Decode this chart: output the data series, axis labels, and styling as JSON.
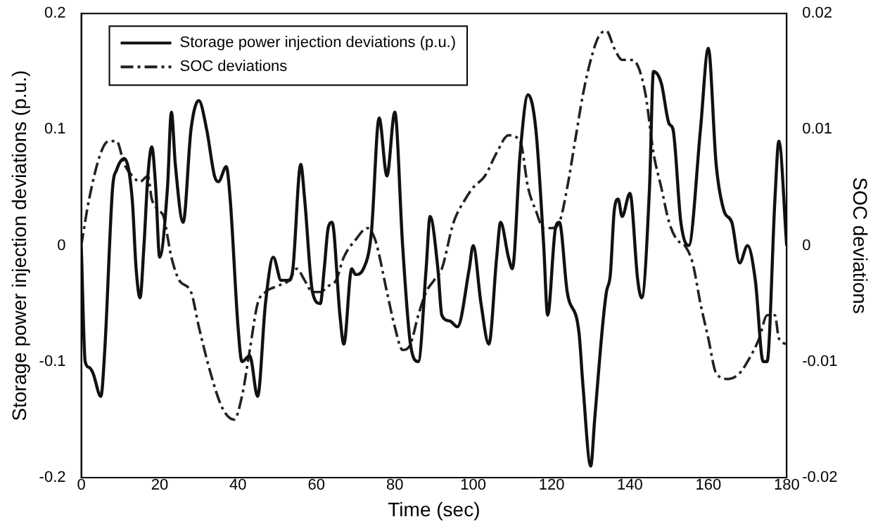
{
  "chart_data": {
    "type": "line",
    "xlabel": "Time (sec)",
    "ylabel": "Storage power injection deviations (p.u.)",
    "y2label": "SOC deviations",
    "xlim": [
      0,
      180
    ],
    "xticks": [
      0,
      20,
      40,
      60,
      80,
      100,
      120,
      140,
      160,
      180
    ],
    "ylim": [
      -0.2,
      0.2
    ],
    "yticks": [
      -0.2,
      -0.1,
      0,
      0.1,
      0.2
    ],
    "y2lim": [
      -0.02,
      0.02
    ],
    "y2ticks": [
      -0.02,
      -0.01,
      0,
      0.01,
      0.02
    ],
    "grid": false,
    "legend": "top left",
    "marker": "none",
    "series": [
      {
        "name": "Storage power injection deviations (p.u.)",
        "color": "#111111",
        "line_style": "solid",
        "x": [
          0,
          1,
          2,
          3,
          5,
          6,
          8,
          9,
          11,
          13,
          14,
          15,
          16,
          17,
          18,
          19,
          20,
          22,
          23,
          24,
          26,
          28,
          30,
          32,
          34,
          35,
          37,
          38,
          40,
          41,
          43,
          45,
          47,
          49,
          51,
          53,
          54,
          56,
          57,
          59,
          61,
          62,
          63,
          64,
          66,
          67,
          69,
          70,
          72,
          74,
          76,
          78,
          80,
          82,
          84,
          86,
          88,
          89,
          91,
          92,
          94,
          96,
          99,
          100,
          102,
          104,
          106,
          107,
          109,
          110,
          112,
          114,
          116,
          118,
          119,
          121,
          122,
          124,
          127,
          128,
          130,
          131,
          133,
          134,
          135,
          136,
          137,
          138,
          140,
          142,
          143,
          145,
          146,
          148,
          150,
          151,
          153,
          155,
          158,
          160,
          162,
          164,
          166,
          168,
          170,
          172,
          174,
          175,
          177,
          178,
          180
        ],
        "values": [
          0,
          -0.1,
          -0.105,
          -0.11,
          -0.13,
          -0.09,
          0.05,
          0.065,
          0.075,
          0.04,
          -0.02,
          -0.045,
          0,
          0.06,
          0.085,
          0.05,
          -0.01,
          0.05,
          0.115,
          0.07,
          0.02,
          0.1,
          0.125,
          0.1,
          0.06,
          0.055,
          0.068,
          0.04,
          -0.07,
          -0.1,
          -0.095,
          -0.13,
          -0.05,
          -0.01,
          -0.03,
          -0.03,
          -0.02,
          0.07,
          0.04,
          -0.04,
          -0.05,
          -0.02,
          0.015,
          0.02,
          -0.06,
          -0.085,
          -0.02,
          -0.025,
          -0.02,
          0.01,
          0.11,
          0.06,
          0.115,
          0,
          -0.085,
          -0.1,
          -0.02,
          0.025,
          -0.02,
          -0.06,
          -0.065,
          -0.07,
          -0.02,
          0,
          -0.05,
          -0.085,
          -0.01,
          0.02,
          -0.01,
          -0.02,
          0.08,
          0.13,
          0.1,
          0,
          -0.06,
          0.015,
          0.02,
          -0.04,
          -0.075,
          -0.12,
          -0.19,
          -0.15,
          -0.07,
          -0.04,
          -0.025,
          0.03,
          0.04,
          0.025,
          0.045,
          -0.03,
          -0.045,
          0.05,
          0.15,
          0.14,
          0.105,
          0.1,
          0.02,
          0,
          0.1,
          0.17,
          0.07,
          0.03,
          0.02,
          -0.015,
          0,
          -0.03,
          -0.1,
          -0.1,
          0.04,
          0.09,
          0
        ]
      },
      {
        "name": "SOC deviations",
        "color": "#222222",
        "line_style": "dashed",
        "axis": "y2",
        "x": [
          0,
          2,
          5,
          7,
          9,
          11,
          13,
          15,
          17,
          18,
          20,
          21,
          23,
          25,
          28,
          30,
          33,
          36,
          39,
          41,
          43,
          45,
          47,
          50,
          53,
          55,
          57,
          59,
          61,
          63,
          65,
          67,
          70,
          73,
          75,
          78,
          80,
          82,
          84,
          86,
          88,
          90,
          92,
          95,
          98,
          100,
          103,
          106,
          109,
          112,
          114,
          116,
          118,
          120,
          122,
          124,
          126,
          128,
          130,
          132,
          134,
          136,
          138,
          140,
          142,
          144,
          146,
          148,
          150,
          152,
          154,
          156,
          158,
          160,
          162,
          165,
          168,
          170,
          173,
          175,
          177,
          178,
          180
        ],
        "values": [
          0,
          0.004,
          0.008,
          0.009,
          0.009,
          0.007,
          0.006,
          0.0055,
          0.006,
          0.004,
          0.003,
          0.0025,
          -0.001,
          -0.003,
          -0.004,
          -0.007,
          -0.011,
          -0.014,
          -0.015,
          -0.013,
          -0.009,
          -0.005,
          -0.004,
          -0.0035,
          -0.003,
          -0.002,
          -0.003,
          -0.004,
          -0.004,
          -0.0035,
          -0.003,
          -0.001,
          0.0005,
          0.0015,
          0.0005,
          -0.004,
          -0.007,
          -0.009,
          -0.0085,
          -0.006,
          -0.004,
          -0.003,
          -0.002,
          0.002,
          0.004,
          0.005,
          0.006,
          0.008,
          0.0095,
          0.009,
          0.005,
          0.003,
          0.0015,
          0.0015,
          0.002,
          0.005,
          0.009,
          0.013,
          0.016,
          0.018,
          0.0185,
          0.017,
          0.016,
          0.016,
          0.0155,
          0.013,
          0.008,
          0.005,
          0.002,
          0.0005,
          0,
          -0.0015,
          -0.005,
          -0.008,
          -0.011,
          -0.0115,
          -0.011,
          -0.01,
          -0.008,
          -0.006,
          -0.006,
          -0.008,
          -0.0085
        ]
      }
    ]
  }
}
